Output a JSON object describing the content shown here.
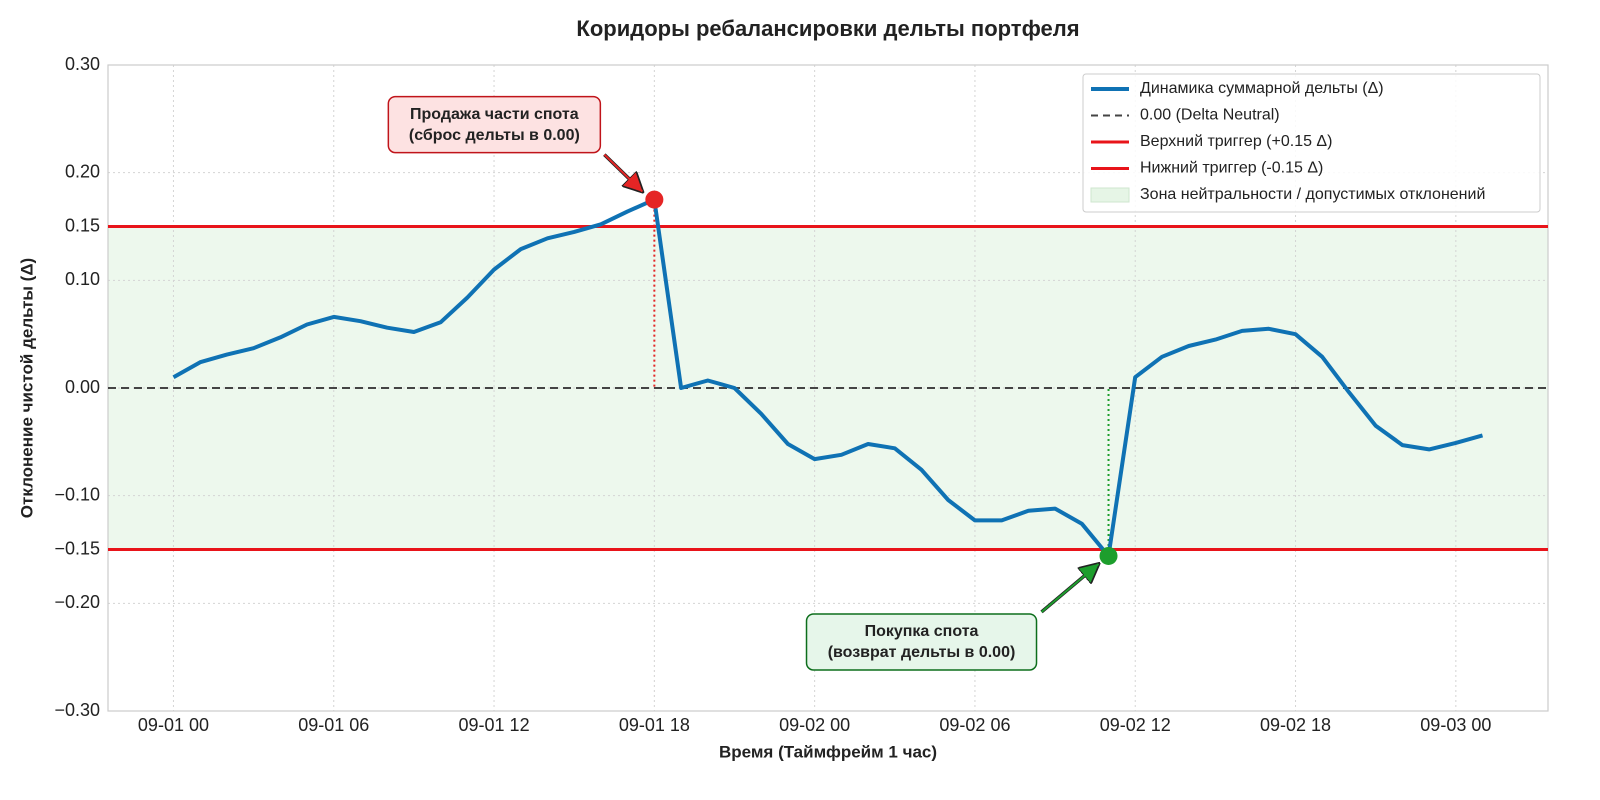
{
  "chart_data": {
    "type": "line",
    "title": "Коридоры ребалансировки дельты портфеля",
    "xlabel": "Время (Таймфрейм 1 час)",
    "ylabel": "Отклонение чистой дельты (Δ)",
    "x": [
      "09-01 00",
      "09-01 01",
      "09-01 02",
      "09-01 03",
      "09-01 04",
      "09-01 05",
      "09-01 06",
      "09-01 07",
      "09-01 08",
      "09-01 09",
      "09-01 10",
      "09-01 11",
      "09-01 12",
      "09-01 13",
      "09-01 14",
      "09-01 15",
      "09-01 16",
      "09-01 17",
      "09-01 18",
      "09-01 19",
      "09-01 20",
      "09-01 21",
      "09-01 22",
      "09-01 23",
      "09-02 00",
      "09-02 01",
      "09-02 02",
      "09-02 03",
      "09-02 04",
      "09-02 05",
      "09-02 06",
      "09-02 07",
      "09-02 08",
      "09-02 09",
      "09-02 10",
      "09-02 11",
      "09-02 12",
      "09-02 13",
      "09-02 14",
      "09-02 15",
      "09-02 16",
      "09-02 17",
      "09-02 18",
      "09-02 19",
      "09-02 20",
      "09-02 21",
      "09-02 22",
      "09-02 23",
      "09-03 00",
      "09-03 01"
    ],
    "series": [
      {
        "name": "Динамика суммарной дельты (Δ)",
        "color": "#0f72b4",
        "values": [
          0.01,
          0.024,
          0.031,
          0.037,
          0.047,
          0.059,
          0.066,
          0.062,
          0.056,
          0.052,
          0.061,
          0.084,
          0.11,
          0.129,
          0.139,
          0.145,
          0.152,
          0.164,
          0.175,
          0.0,
          0.007,
          0.0,
          -0.024,
          -0.052,
          -0.066,
          -0.062,
          -0.052,
          -0.056,
          -0.076,
          -0.104,
          -0.123,
          -0.123,
          -0.114,
          -0.112,
          -0.126,
          -0.156,
          0.01,
          0.029,
          0.039,
          0.045,
          0.053,
          0.055,
          0.05,
          0.029,
          -0.004,
          -0.035,
          -0.053,
          -0.057,
          -0.051,
          -0.044
        ]
      }
    ],
    "hlines": [
      {
        "name": "0.00 (Delta Neutral)",
        "value": 0,
        "color": "#444444",
        "style": "dashed"
      },
      {
        "name": "Верхний триггер (+0.15 Δ)",
        "value": 0.15,
        "color": "#e8141a",
        "style": "solid"
      },
      {
        "name": "Нижний триггер (-0.15 Δ)",
        "value": -0.15,
        "color": "#e8141a",
        "style": "solid"
      }
    ],
    "band": {
      "name": "Зона нейтральности / допустимых отклонений",
      "range": [
        -0.15,
        0.15
      ],
      "color": "#e6f5e6"
    },
    "annotations": [
      {
        "text": [
          "Продажа части спота",
          "(сброс дельты в 0.00)"
        ],
        "x": "09-01 18",
        "color": "#c0141a",
        "box_color": "#fde2e2",
        "marker_color": "#e52525"
      },
      {
        "text": [
          "Покупка спота",
          "(возврат дельты в 0.00)"
        ],
        "x": "09-02 11",
        "color": "#0d6e1c",
        "box_color": "#e6f6ea",
        "marker_color": "#1d9e2d"
      }
    ],
    "ylim": [
      -0.3,
      0.3
    ],
    "yticks": [
      {
        "value": 0.3,
        "label": "0.30"
      },
      {
        "value": 0.2,
        "label": "0.20"
      },
      {
        "value": 0.15,
        "label": "0.15"
      },
      {
        "value": 0.1,
        "label": "0.10"
      },
      {
        "value": 0,
        "label": "0.00"
      },
      {
        "value": -0.1,
        "label": "−0.10"
      },
      {
        "value": -0.15,
        "label": "−0.15"
      },
      {
        "value": -0.2,
        "label": "−0.20"
      },
      {
        "value": -0.3,
        "label": "−0.30"
      }
    ],
    "xticks": [
      "09-01 00",
      "09-01 06",
      "09-01 12",
      "09-01 18",
      "09-02 00",
      "09-02 06",
      "09-02 12",
      "09-02 18",
      "09-03 00"
    ],
    "grid": true,
    "legend": "upper right"
  }
}
